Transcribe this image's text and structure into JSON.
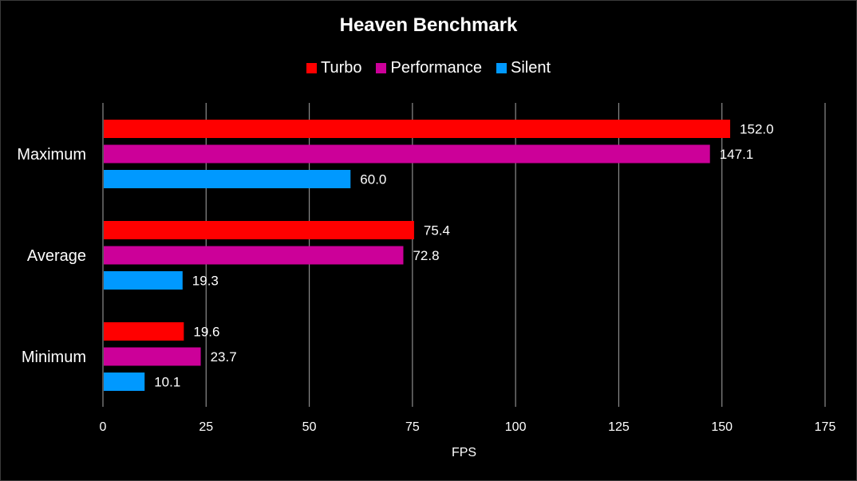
{
  "chart_data": {
    "type": "bar",
    "orientation": "horizontal",
    "title": "Heaven Benchmark",
    "xlabel": "FPS",
    "ylabel": "",
    "xlim": [
      0,
      175
    ],
    "xticks": [
      0,
      25,
      50,
      75,
      100,
      125,
      150,
      175
    ],
    "grid": true,
    "legend_position": "top",
    "categories": [
      "Maximum",
      "Average",
      "Minimum"
    ],
    "series": [
      {
        "name": "Turbo",
        "color": "#ff0000",
        "values": [
          152.0,
          75.4,
          19.6
        ],
        "labels": [
          "152.0",
          "75.4",
          "19.6"
        ]
      },
      {
        "name": "Performance",
        "color": "#cc0099",
        "values": [
          147.1,
          72.8,
          23.7
        ],
        "labels": [
          "147.1",
          "72.8",
          "23.7"
        ]
      },
      {
        "name": "Silent",
        "color": "#0099ff",
        "values": [
          60.0,
          19.3,
          10.1
        ],
        "labels": [
          "60.0",
          "19.3",
          "10.1"
        ]
      }
    ]
  }
}
